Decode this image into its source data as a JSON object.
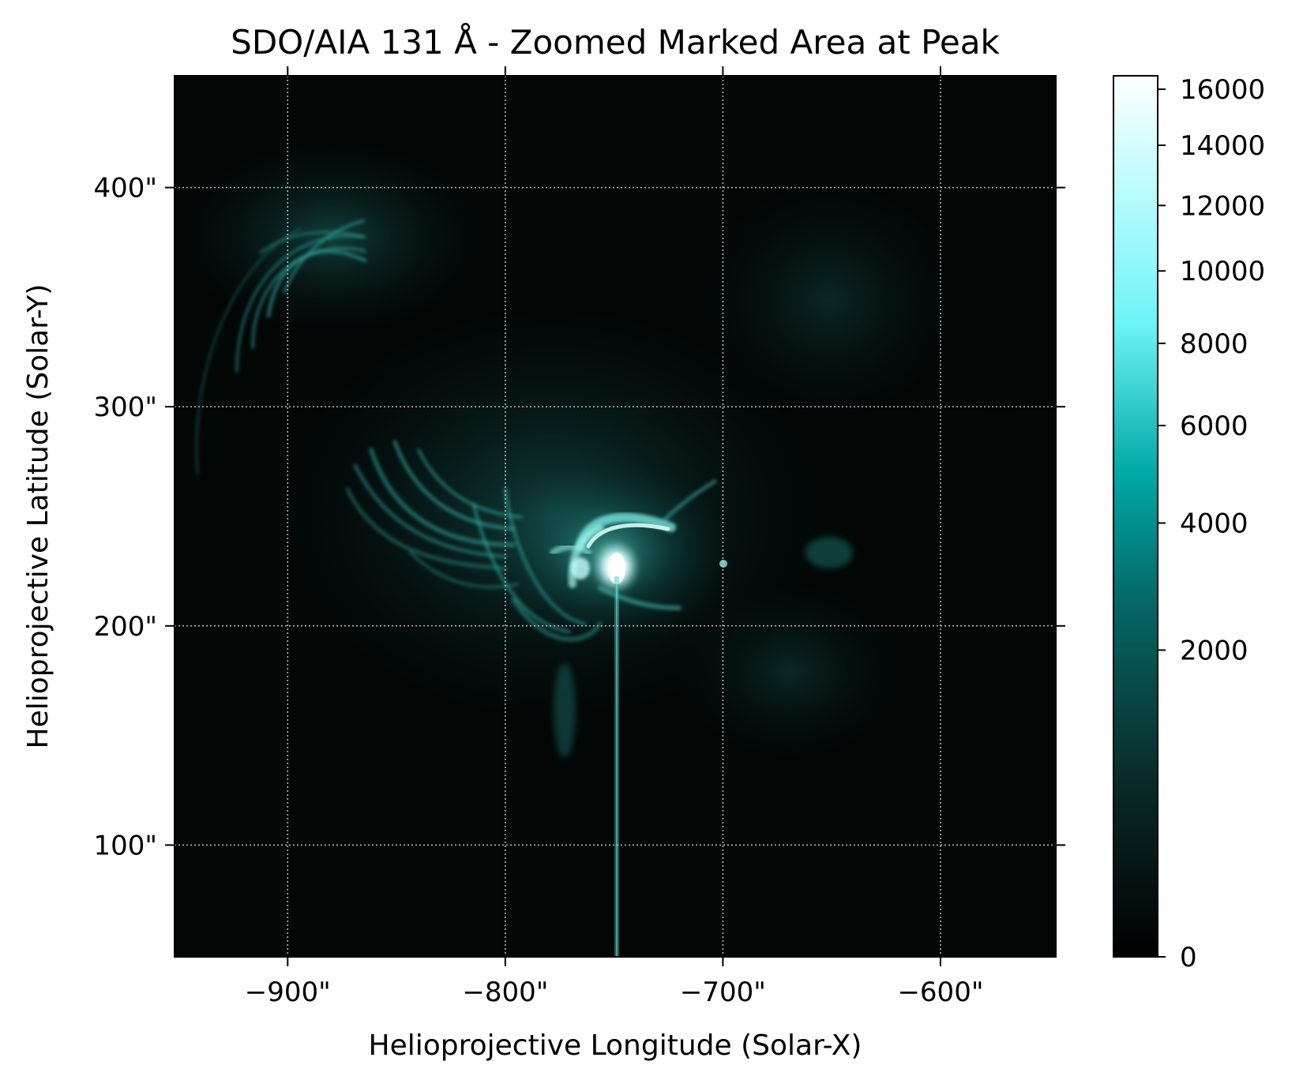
{
  "figure": {
    "title": "SDO/AIA 131 Å - Zoomed Marked Area at Peak",
    "xlabel": "Helioprojective Longitude (Solar-X)",
    "ylabel": "Helioprojective Latitude (Solar-Y)"
  },
  "x_axis": {
    "range_arcsec": [
      -952,
      -547
    ],
    "ticks": [
      {
        "value": -900,
        "label": "−900\""
      },
      {
        "value": -800,
        "label": "−800\""
      },
      {
        "value": -700,
        "label": "−700\""
      },
      {
        "value": -600,
        "label": "−600\""
      }
    ]
  },
  "y_axis": {
    "range_arcsec": [
      49,
      451
    ],
    "ticks": [
      {
        "value": 100,
        "label": "100\""
      },
      {
        "value": 200,
        "label": "200\""
      },
      {
        "value": 300,
        "label": "300\""
      },
      {
        "value": 400,
        "label": "400\""
      }
    ]
  },
  "colorbar": {
    "scale": "sqrt",
    "range": [
      0,
      16500
    ],
    "ticks": [
      {
        "value": 0,
        "label": "0"
      },
      {
        "value": 2000,
        "label": "2000"
      },
      {
        "value": 4000,
        "label": "4000"
      },
      {
        "value": 6000,
        "label": "6000"
      },
      {
        "value": 8000,
        "label": "8000"
      },
      {
        "value": 10000,
        "label": "10000"
      },
      {
        "value": 12000,
        "label": "12000"
      },
      {
        "value": 14000,
        "label": "14000"
      },
      {
        "value": 16000,
        "label": "16000"
      }
    ]
  },
  "colors": {
    "background": "#020706",
    "emission": "#3fd8cf",
    "core": "#ffffff",
    "grid": "#cfcfcf"
  }
}
